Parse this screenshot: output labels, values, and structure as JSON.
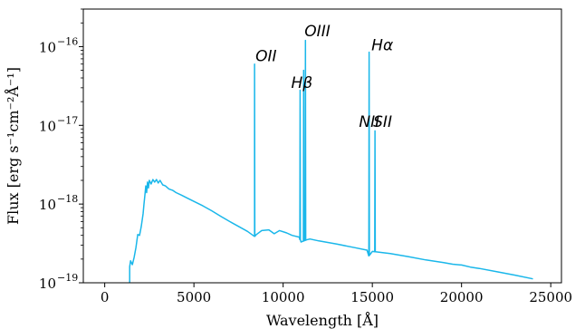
{
  "chart_data": {
    "type": "line",
    "xlabel": "Wavelength [Å]",
    "ylabel": "Flux [erg s⁻¹cm⁻²Å⁻¹]",
    "yscale": "log",
    "xlim": [
      -1200,
      25600
    ],
    "ylim": [
      1e-19,
      3e-16
    ],
    "grid": false,
    "color": "#1ab7ea",
    "x_ticks": [
      0,
      5000,
      10000,
      15000,
      20000,
      25000
    ],
    "x_tick_labels": [
      "0",
      "5000",
      "10000",
      "15000",
      "20000",
      "25000"
    ],
    "y_ticks": [
      1e-19,
      1e-18,
      1e-17,
      1e-16
    ],
    "y_tick_labels": [
      {
        "base": "10",
        "exp": "−19"
      },
      {
        "base": "10",
        "exp": "−18"
      },
      {
        "base": "10",
        "exp": "−17"
      },
      {
        "base": "10",
        "exp": "−16"
      }
    ],
    "series": [
      {
        "continuum": [
          [
            1400,
            1e-19
          ],
          [
            1400,
            1.6e-19
          ],
          [
            1450,
            1.9e-19
          ],
          [
            1550,
            1.7e-19
          ],
          [
            1650,
            2.1e-19
          ],
          [
            1750,
            2.8e-19
          ],
          [
            1850,
            4.1e-19
          ],
          [
            1950,
            4e-19
          ],
          [
            2050,
            5.2e-19
          ],
          [
            2150,
            7.5e-19
          ],
          [
            2200,
            1e-18
          ],
          [
            2250,
            1.3e-18
          ],
          [
            2300,
            1.7e-18
          ],
          [
            2350,
            1.4e-18
          ],
          [
            2400,
            1.9e-18
          ],
          [
            2450,
            1.6e-18
          ],
          [
            2500,
            2e-18
          ],
          [
            2600,
            1.8e-18
          ],
          [
            2700,
            2.05e-18
          ],
          [
            2800,
            1.9e-18
          ],
          [
            2900,
            2.05e-18
          ],
          [
            3000,
            1.85e-18
          ],
          [
            3100,
            2e-18
          ],
          [
            3250,
            1.75e-18
          ],
          [
            3400,
            1.7e-18
          ],
          [
            3600,
            1.55e-18
          ],
          [
            3800,
            1.5e-18
          ],
          [
            4000,
            1.4e-18
          ],
          [
            4300,
            1.3e-18
          ],
          [
            4600,
            1.2e-18
          ],
          [
            5000,
            1.08e-18
          ],
          [
            5500,
            9.5e-19
          ],
          [
            6000,
            8.2e-19
          ],
          [
            6500,
            7e-19
          ],
          [
            7000,
            6e-19
          ],
          [
            7500,
            5.2e-19
          ],
          [
            8000,
            4.5e-19
          ],
          [
            8400,
            3.9e-19
          ],
          [
            8500,
            4.1e-19
          ],
          [
            8800,
            4.6e-19
          ],
          [
            9200,
            4.7e-19
          ],
          [
            9500,
            4.2e-19
          ],
          [
            9800,
            4.6e-19
          ],
          [
            10200,
            4.3e-19
          ],
          [
            10500,
            4e-19
          ],
          [
            10900,
            3.8e-19
          ],
          [
            11000,
            3.3e-19
          ],
          [
            11300,
            3.5e-19
          ],
          [
            11500,
            3.6e-19
          ],
          [
            12000,
            3.4e-19
          ],
          [
            13000,
            3.1e-19
          ],
          [
            14000,
            2.8e-19
          ],
          [
            14700,
            2.6e-19
          ],
          [
            14800,
            2.2e-19
          ],
          [
            15000,
            2.5e-19
          ],
          [
            16000,
            2.35e-19
          ],
          [
            17000,
            2.15e-19
          ],
          [
            18000,
            1.95e-19
          ],
          [
            19000,
            1.8e-19
          ],
          [
            19500,
            1.72e-19
          ],
          [
            20000,
            1.68e-19
          ],
          [
            20500,
            1.58e-19
          ],
          [
            21000,
            1.52e-19
          ],
          [
            22000,
            1.38e-19
          ],
          [
            23000,
            1.25e-19
          ],
          [
            24000,
            1.12e-19
          ]
        ],
        "lines": [
          {
            "x": 8400,
            "peak": 6e-17
          },
          {
            "x": 10950,
            "peak": 2.8e-17
          },
          {
            "x": 11150,
            "peak": 5e-17
          },
          {
            "x": 11250,
            "peak": 1.2e-16
          },
          {
            "x": 14820,
            "peak": 8.5e-17
          },
          {
            "x": 15150,
            "peak": 8.5e-18
          }
        ]
      }
    ],
    "annotations": [
      {
        "text": "OII",
        "x": 8450,
        "y": 6.5e-17
      },
      {
        "text": "Hβ",
        "x": 10450,
        "y": 3e-17
      },
      {
        "text": "OIII",
        "x": 11200,
        "y": 1.35e-16
      },
      {
        "text": "Hα",
        "x": 14950,
        "y": 9e-17
      },
      {
        "text": "NII",
        "x": 14250,
        "y": 9.5e-18
      },
      {
        "text": "SII",
        "x": 15050,
        "y": 9.5e-18
      }
    ]
  }
}
